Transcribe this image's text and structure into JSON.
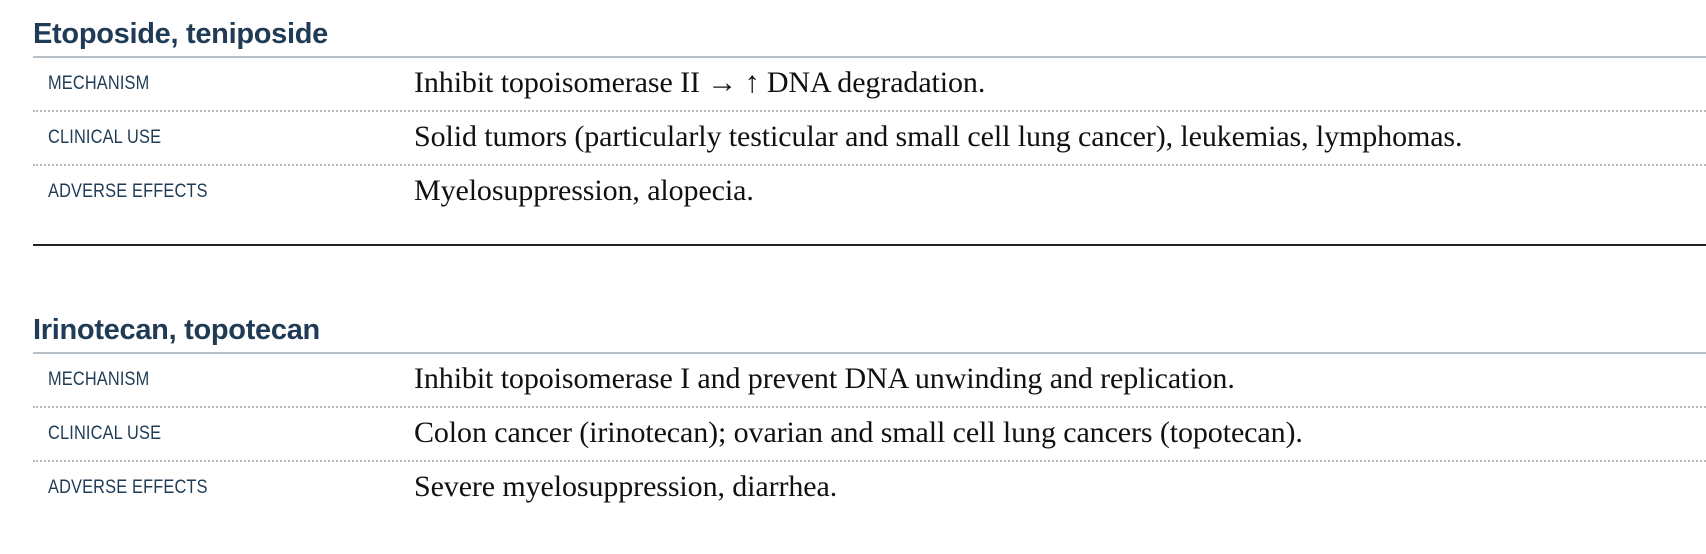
{
  "sections": [
    {
      "title": "Etoposide, teniposide",
      "rows": [
        {
          "label": "MECHANISM",
          "text": "Inhibit topoisomerase II → ↑ DNA degradation."
        },
        {
          "label": "CLINICAL USE",
          "text": "Solid tumors (particularly testicular and small cell lung cancer), leukemias, lymphomas."
        },
        {
          "label": "ADVERSE EFFECTS",
          "text": "Myelosuppression, alopecia."
        }
      ]
    },
    {
      "title": "Irinotecan, topotecan",
      "rows": [
        {
          "label": "MECHANISM",
          "text": "Inhibit topoisomerase I and prevent DNA unwinding and replication."
        },
        {
          "label": "CLINICAL USE",
          "text": "Colon cancer (irinotecan); ovarian and small cell lung cancers (topotecan)."
        },
        {
          "label": "ADVERSE EFFECTS",
          "text": "Severe myelosuppression, diarrhea."
        }
      ]
    }
  ]
}
